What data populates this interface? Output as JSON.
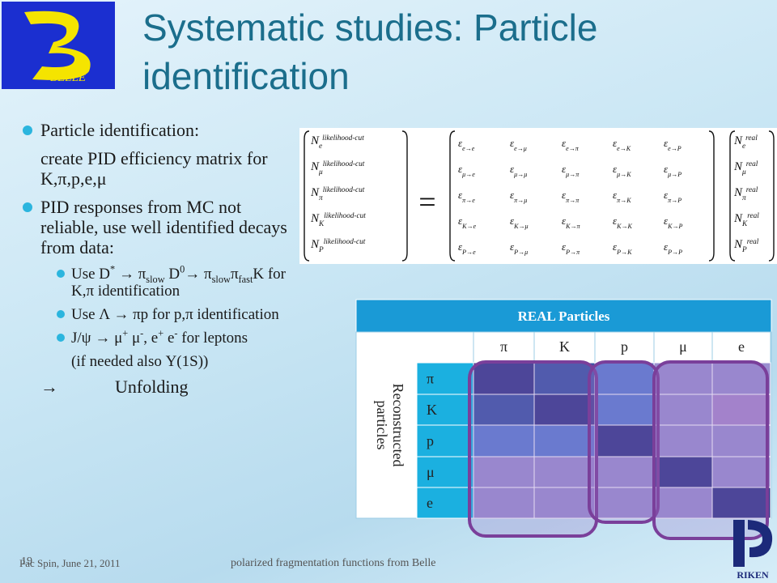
{
  "header": {
    "title": "Systematic studies: Particle identification",
    "logo_text": "BELLE"
  },
  "bullets": [
    {
      "level": 1,
      "marker": true,
      "runs": [
        {
          "text": "Particle identification:"
        }
      ]
    },
    {
      "level": 1,
      "marker": false,
      "runs": [
        {
          "text": "create PID efficiency matrix for K,π,p,e,μ"
        }
      ]
    },
    {
      "level": 1,
      "marker": true,
      "runs": [
        {
          "text": "PID responses from MC not reliable, use well identified decays from data:"
        }
      ]
    },
    {
      "level": 2,
      "marker": true,
      "runs": [
        {
          "text": "Use D"
        },
        {
          "text": "*",
          "style": "sup"
        },
        {
          "text": " → π"
        },
        {
          "text": "slow",
          "style": "sub"
        },
        {
          "text": " D"
        },
        {
          "text": "0",
          "style": "sup"
        },
        {
          "text": "→ π"
        },
        {
          "text": "slow",
          "style": "sub"
        },
        {
          "text": "π"
        },
        {
          "text": "fast",
          "style": "sub"
        },
        {
          "text": "K for K,π identification"
        }
      ]
    },
    {
      "level": 2,
      "marker": true,
      "runs": [
        {
          "text": "Use Λ → πp for p,π identification"
        }
      ]
    },
    {
      "level": 2,
      "marker": true,
      "runs": [
        {
          "text": "J/ψ → μ"
        },
        {
          "text": "+",
          "style": "sup"
        },
        {
          "text": " μ"
        },
        {
          "text": "-",
          "style": "sup"
        },
        {
          "text": ", e"
        },
        {
          "text": "+",
          "style": "sup"
        },
        {
          "text": " e"
        },
        {
          "text": "-",
          "style": "sup"
        },
        {
          "text": " for leptons"
        }
      ]
    },
    {
      "level": 2,
      "marker": false,
      "runs": [
        {
          "text": "(if needed also Υ(1S))"
        }
      ]
    },
    {
      "level": 1,
      "marker": false,
      "runs": [
        {
          "text": "→"
        },
        {
          "text": "Unfolding",
          "style": "gap"
        }
      ]
    }
  ],
  "equation": {
    "left": {
      "symbol": "N",
      "superscript": "likelihood-cut",
      "subscripts": [
        "e",
        "μ",
        "π",
        "K",
        "P"
      ]
    },
    "equals": "=",
    "matrix": {
      "symbol": "ε",
      "arrow": "→",
      "rows": [
        "e",
        "μ",
        "π",
        "K",
        "P"
      ],
      "cols": [
        "e",
        "μ",
        "π",
        "K",
        "P"
      ]
    },
    "right": {
      "symbol": "N",
      "superscript": "real",
      "subscripts": [
        "e",
        "μ",
        "π",
        "K",
        "P"
      ]
    }
  },
  "table": {
    "title": "REAL  Particles",
    "row_header": "Reconstructed particles",
    "columns": [
      "π",
      "K",
      "p",
      "μ",
      "e"
    ],
    "rows": [
      "π",
      "K",
      "p",
      "μ",
      "e"
    ]
  },
  "footer": {
    "date": "Pac Spin, June 21, 2011",
    "page": "19",
    "center": "polarized fragmentation functions from Belle",
    "logo_text": "RIKEN"
  }
}
